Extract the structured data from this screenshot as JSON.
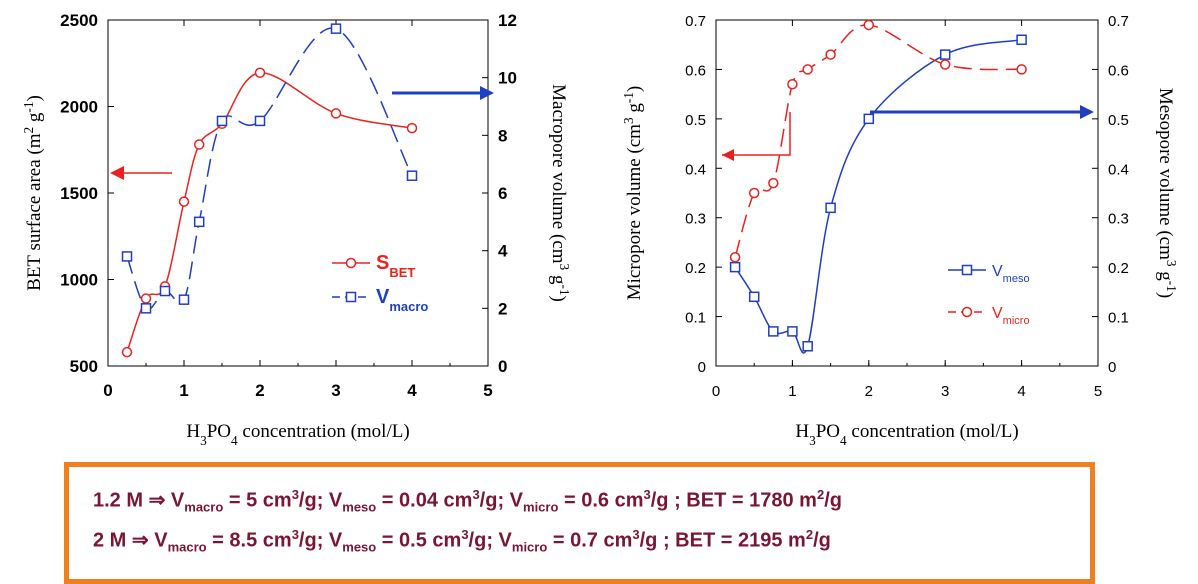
{
  "chart_data": [
    {
      "type": "line",
      "xlabel": {
        "pre": "H",
        "s1": "3",
        "mid": "PO",
        "s2": "4",
        "post": " concentration (mol/L)"
      },
      "ylabel_left": {
        "pre": "BET surface area (m",
        "sup": "2",
        "post": " g",
        "sup2": "-1",
        "end": ")"
      },
      "ylabel_right": {
        "pre": "Macropore volume (cm",
        "sup": "3",
        "post": " g",
        "sup2": "-1",
        "end": ")"
      },
      "xlim": [
        0,
        5
      ],
      "ylim_left": [
        500,
        2500
      ],
      "ylim_right": [
        0,
        12
      ],
      "xticks": [
        "0",
        "1",
        "2",
        "3",
        "4",
        "5"
      ],
      "yticks_left": [
        "500",
        "1000",
        "1500",
        "2000",
        "2500"
      ],
      "yticks_right": [
        "0",
        "2",
        "4",
        "6",
        "8",
        "10",
        "12"
      ],
      "series": [
        {
          "name": "S",
          "sub": "BET",
          "axis": "left",
          "color": "#e8231f",
          "marker": "circle",
          "dashed": false,
          "x": [
            0.25,
            0.5,
            0.75,
            1.0,
            1.2,
            1.5,
            2.0,
            3.0,
            4.0
          ],
          "y": [
            580,
            890,
            960,
            1450,
            1780,
            1900,
            2195,
            1960,
            1875
          ]
        },
        {
          "name": "V",
          "sub": "macro",
          "axis": "right",
          "color": "#1f3fc0",
          "marker": "square",
          "dashed": true,
          "x": [
            0.25,
            0.5,
            0.75,
            1.0,
            1.2,
            1.5,
            2.0,
            3.0,
            4.0
          ],
          "y": [
            3.8,
            2.0,
            2.6,
            2.3,
            5.0,
            8.5,
            8.5,
            11.7,
            6.6
          ]
        }
      ]
    },
    {
      "type": "line",
      "xlabel": {
        "pre": "H",
        "s1": "3",
        "mid": "PO",
        "s2": "4",
        "post": " concentration (mol/L)"
      },
      "ylabel_left": {
        "pre": "Micropore volume (cm",
        "sup": "3",
        "post": " g",
        "sup2": "-1",
        "end": ")"
      },
      "ylabel_right": {
        "pre": "Mesopore volume (cm",
        "sup": "3",
        "post": " g",
        "sup2": "-1",
        "end": ")"
      },
      "xlim": [
        0,
        5
      ],
      "ylim_left": [
        0,
        0.7
      ],
      "ylim_right": [
        0,
        0.7
      ],
      "xticks": [
        "0",
        "1",
        "2",
        "3",
        "4",
        "5"
      ],
      "yticks_left": [
        "0",
        "0.1",
        "0.2",
        "0.3",
        "0.4",
        "0.5",
        "0.6",
        "0.7"
      ],
      "yticks_right": [
        "0",
        "0.1",
        "0.2",
        "0.3",
        "0.4",
        "0.5",
        "0.6",
        "0.7"
      ],
      "series": [
        {
          "name": "V",
          "sub": "meso",
          "axis": "right",
          "color": "#1f3fc0",
          "marker": "square",
          "dashed": false,
          "x": [
            0.25,
            0.5,
            0.75,
            1.0,
            1.2,
            1.5,
            2.0,
            3.0,
            4.0
          ],
          "y": [
            0.2,
            0.14,
            0.07,
            0.07,
            0.04,
            0.32,
            0.5,
            0.63,
            0.66
          ]
        },
        {
          "name": "V",
          "sub": "micro",
          "axis": "left",
          "color": "#e8231f",
          "marker": "circle",
          "dashed": true,
          "x": [
            0.25,
            0.5,
            0.75,
            1.0,
            1.2,
            1.5,
            2.0,
            3.0,
            4.0
          ],
          "y": [
            0.22,
            0.35,
            0.37,
            0.57,
            0.6,
            0.63,
            0.69,
            0.61,
            0.6
          ]
        }
      ]
    }
  ],
  "summary": [
    {
      "conc": "1.2 M",
      "arrow": "⇒",
      "vmacro": "5",
      "vmeso": "0.04",
      "vmicro": "0.6",
      "bet": "1780"
    },
    {
      "conc": "2 M",
      "arrow": "⇒",
      "vmacro": "8.5",
      "vmeso": "0.5",
      "vmicro": "0.7",
      "bet": "2195"
    }
  ],
  "summary_labels": {
    "v": "V",
    "macro": "macro",
    "meso": "meso",
    "micro": "micro",
    "bet": "BET",
    "unit_vol": "cm",
    "unit_area": "m",
    "sup3": "3",
    "sup2": "2",
    "per": "/g"
  }
}
